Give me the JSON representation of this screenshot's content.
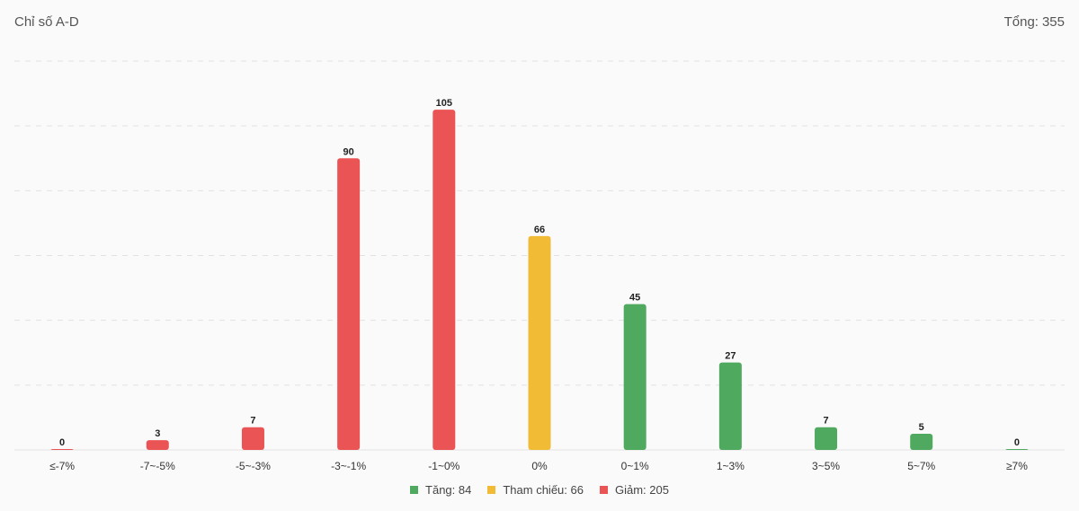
{
  "header": {
    "title": "Chỉ số A-D",
    "total_label": "Tổng:",
    "total_value": "355"
  },
  "colors": {
    "up": "#4fa95f",
    "ref": "#f2bb35",
    "down": "#eb5455",
    "grid": "#e2e2e2"
  },
  "legend": [
    {
      "label": "Tăng: 84",
      "color": "#4fa95f"
    },
    {
      "label": "Tham chiếu: 66",
      "color": "#f2bb35"
    },
    {
      "label": "Giảm: 205",
      "color": "#eb5455"
    }
  ],
  "chart_data": {
    "type": "bar",
    "title": "Chỉ số A-D",
    "categories": [
      "≤-7%",
      "-7~-5%",
      "-5~-3%",
      "-3~-1%",
      "-1~0%",
      "0%",
      "0~1%",
      "1~3%",
      "3~5%",
      "5~7%",
      "≥7%"
    ],
    "values": [
      0,
      3,
      7,
      90,
      105,
      66,
      45,
      27,
      7,
      5,
      0
    ],
    "bar_colors": [
      "#eb5455",
      "#eb5455",
      "#eb5455",
      "#eb5455",
      "#eb5455",
      "#f2bb35",
      "#4fa95f",
      "#4fa95f",
      "#4fa95f",
      "#4fa95f",
      "#4fa95f"
    ],
    "ylim": [
      0,
      120
    ],
    "grid": true,
    "legend_position": "bottom"
  }
}
